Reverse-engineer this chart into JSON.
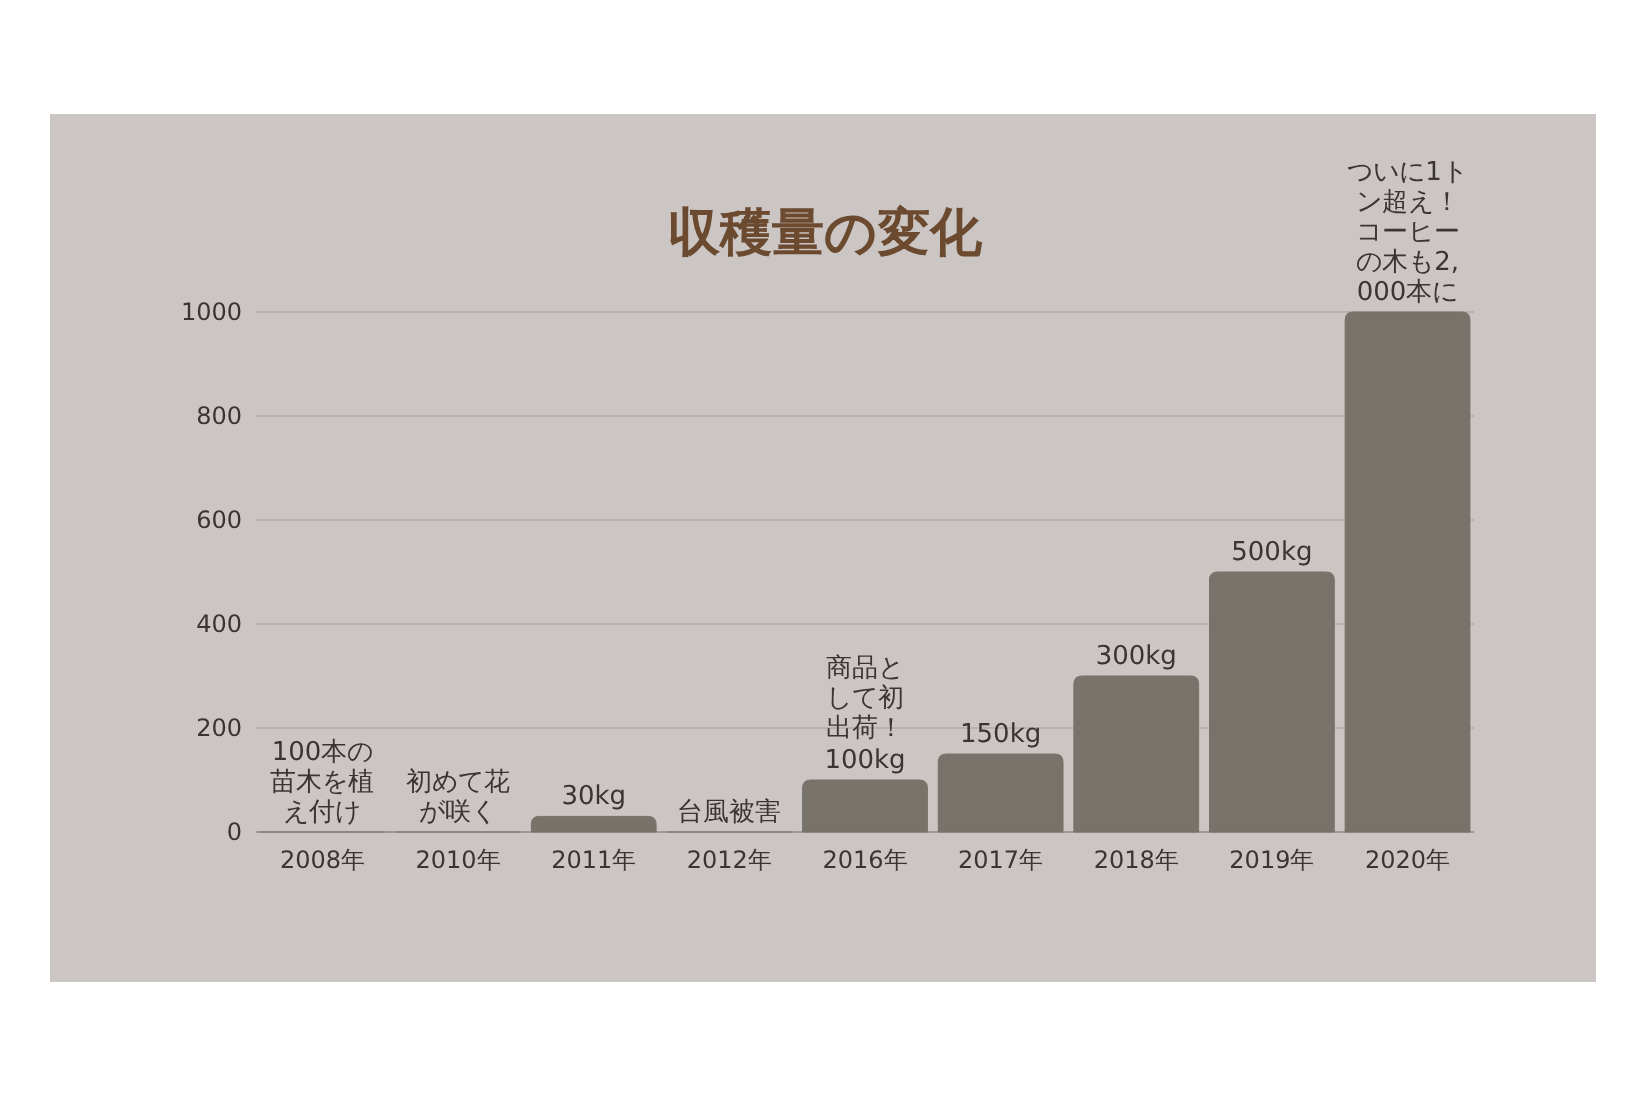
{
  "chart_data": {
    "type": "bar",
    "title": "収穫量の変化",
    "categories": [
      "2008年",
      "2010年",
      "2011年",
      "2012年",
      "2016年",
      "2017年",
      "2018年",
      "2019年",
      "2020年"
    ],
    "values": [
      0,
      0,
      30,
      0,
      100,
      150,
      300,
      500,
      1000
    ],
    "color": "#77736b",
    "value_labels": [
      null,
      null,
      "30kg",
      null,
      "100kg",
      "150kg",
      "300kg",
      "500kg",
      null
    ],
    "annotations": [
      {
        "text": "100本の苗木を植え付け",
        "x": "2008年",
        "y": 0
      },
      {
        "text": "初めて花が咲く",
        "x": "2010年",
        "y": 0
      },
      {
        "text": "台風被害",
        "x": "2012年",
        "y": 0
      },
      {
        "text": "商品として初出荷！",
        "x": "2016年",
        "y": 100
      },
      {
        "text": "ついに1トン超え！コーヒーの木も2,000本に",
        "x": "2020年",
        "y": 1000
      }
    ],
    "ylim": [
      0,
      1000
    ],
    "yticks": [
      0,
      200,
      400,
      600,
      800,
      1000
    ],
    "grid": "y"
  }
}
